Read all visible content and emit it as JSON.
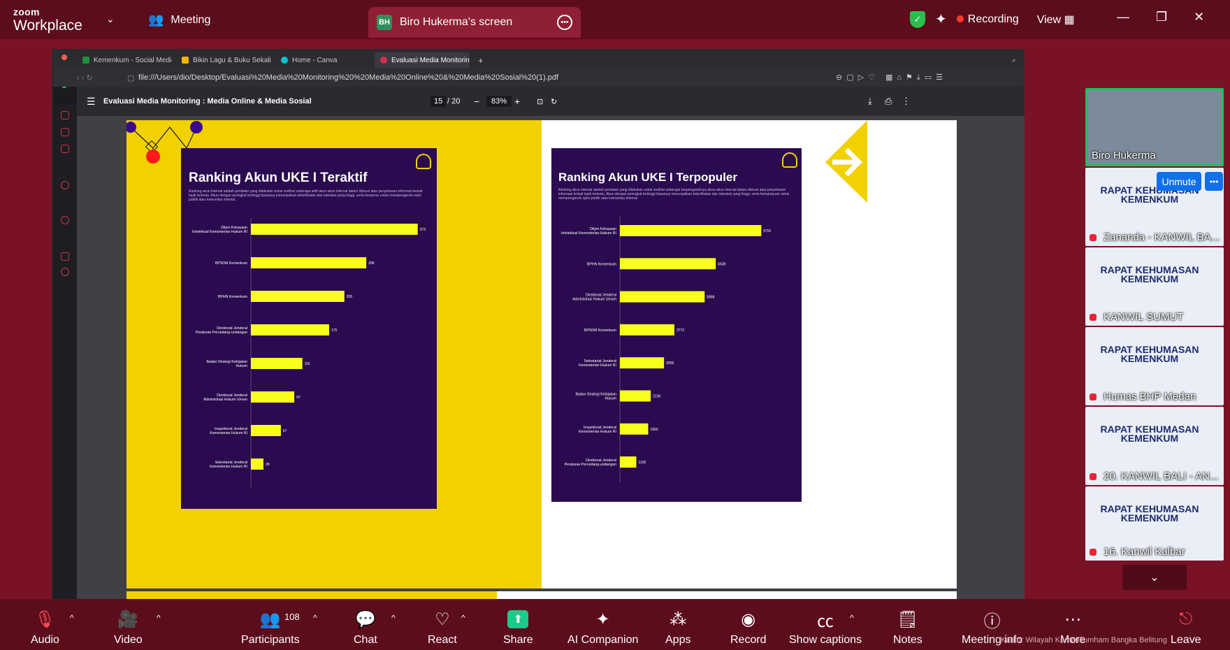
{
  "app": {
    "logo_line1": "zoom",
    "logo_line2": "Workplace",
    "meeting_label": "Meeting",
    "share_initials": "BH",
    "share_title": "Biro Hukerma's screen",
    "recording_label": "Recording",
    "view_label": "View"
  },
  "browser": {
    "tabs": [
      "Kemenkum - Social Media",
      "Bikin Lagu & Buku Sekali",
      "Home - Canva",
      "Evaluasi Media Monitoring"
    ],
    "url": "file:///Users/dio/Desktop/Evaluasi%20Media%20Monitoring%20%20Media%20Online%20&%20Media%20Sosial%20(1).pdf"
  },
  "pdf": {
    "title": "Evaluasi Media Monitoring : Media Online & Media Sosial",
    "page": "15",
    "total": "/ 20",
    "zoom": "83%"
  },
  "slides": [
    {
      "title": "Ranking Akun UKE I Teraktif",
      "desc": "Ranking akun internal adalah penilaian yang dilakukan untuk melihat seberapa aktif akun-akun internal dalam diskusi atau penyebaran informasi terkait topik tertentu. Akun dengan peringkat tertinggi biasanya menunjukkan keterlibatan dan interaksi yang tinggi, serta berperan untuk mempengaruhi opini publik atau komunitas internal."
    },
    {
      "title": "Ranking Akun UKE I Terpopuler",
      "desc": "Ranking akun internal adalah penilaian yang dilakukan untuk melihat seberapa berpengaruhnya akun-akun internal dalam diskusi atau penyebaran informasi terkait topik tertentu. Akun dengan peringkat tertinggi biasanya menunjukkan keterlibatan dan interaksi yang tinggi, serta kemampuan untuk mempengaruhi opini publik atau komunitas internal."
    }
  ],
  "chart_data": [
    {
      "type": "bar",
      "orientation": "horizontal",
      "title": "Ranking Akun UKE I Teraktif",
      "categories": [
        "Ditjen Kekayaan Intelektual Kementerian Hukum RI",
        "BPSDM Kemenkum",
        "BPHN Kemenkum",
        "Direktorat Jenderal Peraturan Perundang-undangan",
        "Badan Strategi Kebijakan Hukum",
        "Direktorat Jenderal Administrasi Hukum Umum",
        "Inspektorat Jenderal Kementerian Hukum RI",
        "Sekretariat Jenderal Kementerian Hukum RI"
      ],
      "values": [
        373,
        258,
        209,
        175,
        115,
        97,
        67,
        28
      ],
      "xlim": [
        0,
        400
      ],
      "bar_color": "#f7ff1a"
    },
    {
      "type": "bar",
      "orientation": "horizontal",
      "title": "Ranking Akun UKE I Terpopuler",
      "categories": [
        "Ditjen Kekayaan Intelektual Kementerian Hukum RI",
        "BPHN Kemenkum",
        "Direktorat Jenderal Administrasi Hukum Umum",
        "BPSDM Kemenkum",
        "Sekretariat Jenderal Kementerian Hukum RI",
        "Badan Strategi Kebijakan Hukum",
        "Inspektorat Jenderal Kementerian Hukum RI",
        "Direktorat Jenderal Peraturan Perundang-undangan"
      ],
      "values": [
        9791,
        6638,
        5868,
        3772,
        3056,
        2136,
        1960,
        1136
      ],
      "xlim": [
        0,
        12000
      ],
      "bar_color": "#f7ff1a"
    }
  ],
  "gallery": {
    "unmute": "Unmute",
    "participants": [
      "Biro Hukerma",
      "Zananda - KANWIL BA...",
      "KANWIL SUMUT",
      "Humas BHP Medan",
      "20. KANWIL BALI - AN...",
      "16. Kanwil Kalbar"
    ],
    "rapat_text": "RAPAT KEHUMASAN KEMENKUM"
  },
  "toolbar": {
    "audio": "Audio",
    "video": "Video",
    "participants": "Participants",
    "participant_count": "108",
    "chat": "Chat",
    "react": "React",
    "share": "Share",
    "ai": "AI Companion",
    "apps": "Apps",
    "record": "Record",
    "captions": "Show captions",
    "notes": "Notes",
    "meeting_info": "Meeting info",
    "more": "More",
    "leave": "Leave",
    "watermark": "Kantor Wilayah Kemenkumham Bangka Belitung"
  },
  "colors": {
    "zoom_bg": "#7a1226",
    "bar_bg": "#5c0d1c",
    "slide_yellow": "#f2d100",
    "card_purple": "#2a0b4f",
    "bar": "#f7ff1a"
  }
}
